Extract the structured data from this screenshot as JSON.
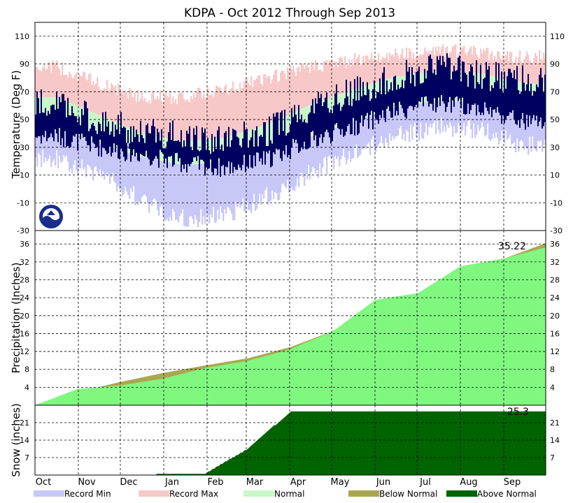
{
  "chart_data": {
    "type": "climate_summary",
    "title": "KDPA - Oct 2012 Through Sep 2013",
    "months": [
      "Oct",
      "Nov",
      "Dec",
      "Jan",
      "Feb",
      "Mar",
      "Apr",
      "May",
      "Jun",
      "Jul",
      "Aug",
      "Sep"
    ],
    "legend": [
      {
        "label": "Record Min",
        "color": "#c8c8f8"
      },
      {
        "label": "Record Max",
        "color": "#f8c8c8"
      },
      {
        "label": "Normal",
        "color": "#c8f8c8"
      },
      {
        "label": "Below Normal",
        "color": "#a8a850"
      },
      {
        "label": "Above Normal",
        "color": "#006400"
      }
    ],
    "temperature": {
      "ylabel": "Temperature (Deg F)",
      "ylim": [
        -30,
        120
      ],
      "yticks": [
        -30,
        -10,
        10,
        30,
        50,
        70,
        90,
        110
      ],
      "observed_color": "#000060",
      "normal_high": [
        66,
        53,
        40,
        34,
        37,
        47,
        61,
        72,
        81,
        85,
        83,
        76
      ],
      "normal_low": [
        43,
        33,
        23,
        17,
        20,
        28,
        38,
        49,
        59,
        64,
        62,
        54
      ],
      "record_high": [
        88,
        76,
        66,
        66,
        72,
        80,
        88,
        93,
        97,
        100,
        98,
        95
      ],
      "record_low": [
        22,
        11,
        -8,
        -22,
        -18,
        -5,
        12,
        27,
        38,
        45,
        42,
        31
      ],
      "observed_high": [
        62,
        48,
        42,
        38,
        35,
        42,
        60,
        70,
        80,
        90,
        82,
        78
      ],
      "observed_low": [
        38,
        30,
        25,
        18,
        15,
        22,
        35,
        45,
        56,
        62,
        58,
        48
      ]
    },
    "precipitation": {
      "ylabel": "Precipitation (Inches)",
      "ylim": [
        0,
        39
      ],
      "yticks": [
        4,
        8,
        12,
        16,
        20,
        24,
        28,
        32,
        36
      ],
      "total_label": "35.22",
      "observed_color": "#80f880",
      "normal_cumulative": [
        0,
        3.0,
        5.2,
        7.2,
        8.9,
        10.5,
        13.0,
        16.6,
        21.0,
        25.0,
        28.9,
        32.7,
        36.2
      ],
      "observed_cumulative": [
        0,
        3.6,
        4.4,
        5.9,
        8.3,
        9.9,
        12.5,
        16.5,
        23.5,
        25.0,
        31.0,
        32.7,
        35.22
      ]
    },
    "snow": {
      "ylabel": "Snow (inches)",
      "ylim": [
        0,
        28
      ],
      "yticks": [
        7,
        14,
        21
      ],
      "total_label": "25.3",
      "observed_color": "#006400",
      "observed_cumulative": [
        0,
        0,
        0,
        0.3,
        0.6,
        10.5,
        25.3,
        25.3,
        25.3,
        25.3,
        25.3,
        25.3,
        25.3
      ]
    }
  }
}
